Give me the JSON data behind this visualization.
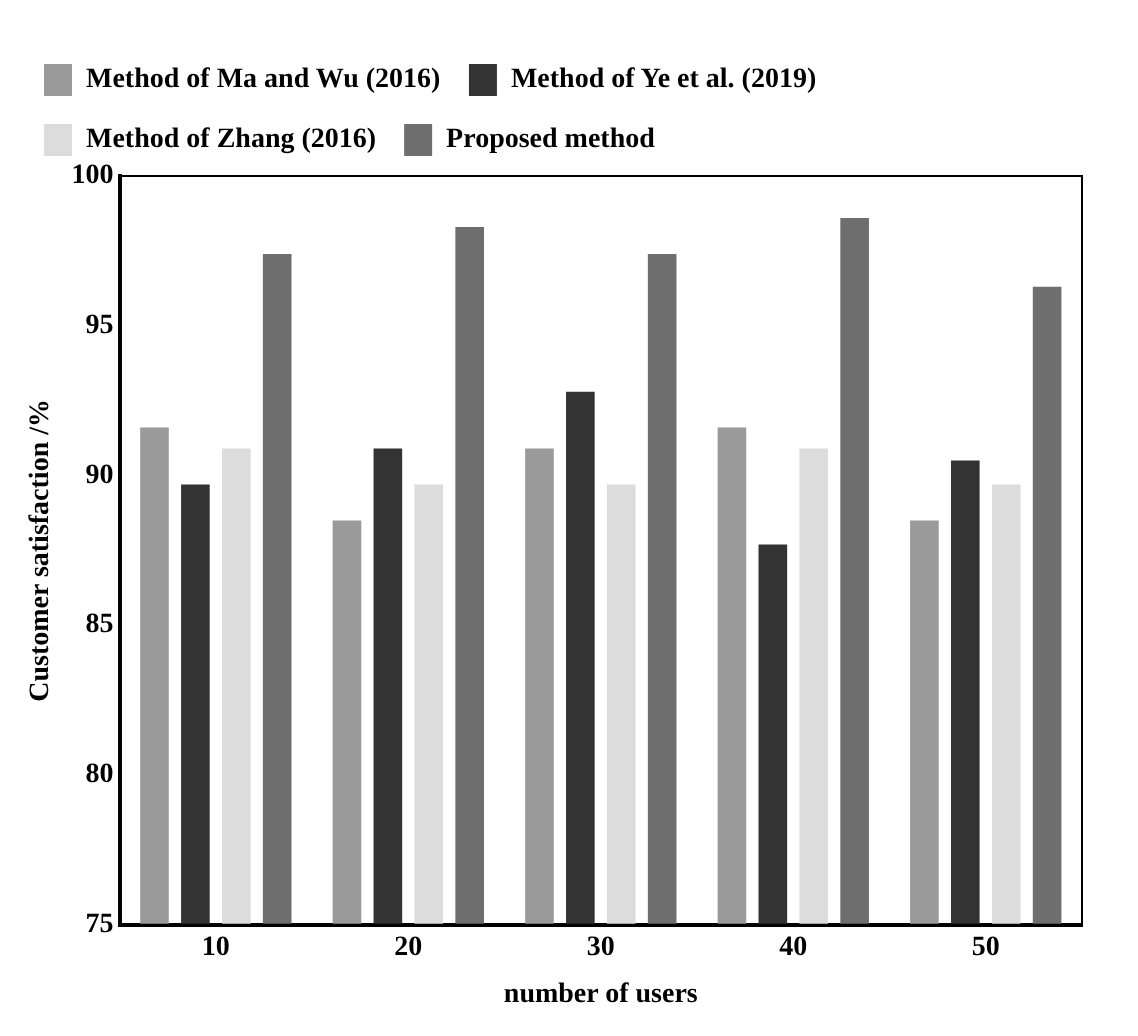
{
  "chart_data": {
    "type": "bar",
    "xlabel": "number of users",
    "ylabel": "Customer satisfaction /%",
    "categories": [
      "10",
      "20",
      "30",
      "40",
      "50"
    ],
    "series": [
      {
        "name": "Method of Ma and Wu (2016)",
        "color": "#9a9a9a",
        "values": [
          91.6,
          88.5,
          90.9,
          91.6,
          88.5
        ]
      },
      {
        "name": "Method of Ye et al. (2019)",
        "color": "#333333",
        "values": [
          89.7,
          90.9,
          92.8,
          87.7,
          90.5
        ]
      },
      {
        "name": "Method of Zhang (2016)",
        "color": "#dcdcdc",
        "values": [
          90.9,
          89.7,
          89.7,
          90.9,
          89.7
        ]
      },
      {
        "name": "Proposed method",
        "color": "#6e6e6e",
        "values": [
          97.4,
          98.3,
          97.4,
          98.6,
          96.3
        ]
      }
    ],
    "ylim": [
      75,
      100
    ],
    "yticks": [
      75,
      80,
      85,
      90,
      95,
      100
    ],
    "grid": false,
    "legend": "top left"
  }
}
